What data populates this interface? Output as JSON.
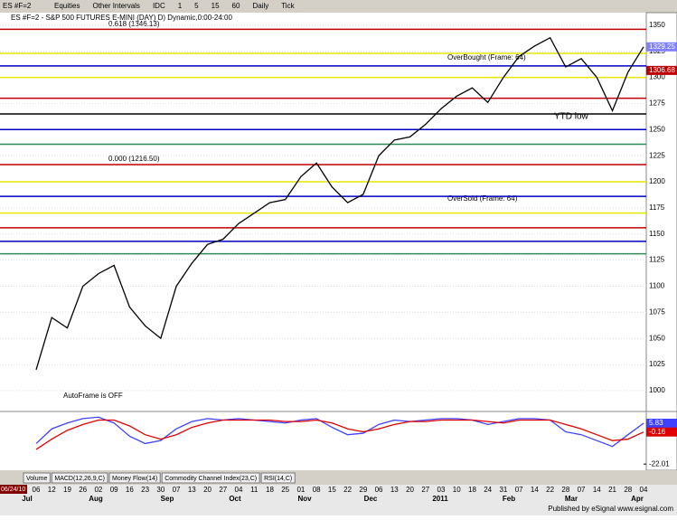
{
  "toolbar": {
    "symbol": "ES #F=2",
    "items": [
      "Equities",
      "Other Intervals",
      "IDC",
      "1",
      "5",
      "15",
      "60",
      "Daily",
      "Tick"
    ]
  },
  "chart_data": [
    {
      "type": "line",
      "title": "ES #F=2 - S&P 500 FUTURES E-MINI (DAY) D) Dynamic,0:00-24:00",
      "categories": [
        "06",
        "12",
        "19",
        "26",
        "02",
        "09",
        "16",
        "23",
        "30",
        "07",
        "13",
        "20",
        "27",
        "04",
        "11",
        "18",
        "25",
        "01",
        "08",
        "15",
        "22",
        "29",
        "06",
        "13",
        "20",
        "27",
        "03",
        "10",
        "18",
        "24",
        "31",
        "07",
        "14",
        "22",
        "28",
        "07",
        "14",
        "21",
        "28",
        "04"
      ],
      "months": [
        "Jul",
        "Aug",
        "Sep",
        "Oct",
        "Nov",
        "Dec",
        "2011",
        "Feb",
        "Mar",
        "Apr"
      ],
      "start_label": "06/24/10",
      "series": [
        {
          "name": "ES #F=2",
          "color": "#000000",
          "values": [
            1020,
            1070,
            1060,
            1100,
            1112,
            1120,
            1080,
            1062,
            1050,
            1100,
            1122,
            1140,
            1145,
            1160,
            1170,
            1180,
            1183,
            1205,
            1218,
            1195,
            1180,
            1188,
            1225,
            1240,
            1243,
            1255,
            1270,
            1282,
            1290,
            1276,
            1300,
            1320,
            1330,
            1338,
            1310,
            1318,
            1300,
            1268,
            1305,
            1329.25
          ]
        }
      ],
      "levels": [
        {
          "value": 1346.13,
          "color": "#c00000"
        },
        {
          "value": 1323,
          "color": "#e6e600"
        },
        {
          "value": 1311,
          "color": "#0000c0"
        },
        {
          "value": 1300,
          "color": "#e6e600"
        },
        {
          "value": 1280,
          "color": "#c00000"
        },
        {
          "value": 1265,
          "color": "#000000"
        },
        {
          "value": 1250,
          "color": "#0000c0"
        },
        {
          "value": 1236,
          "color": "#2e8b57"
        },
        {
          "value": 1216.5,
          "color": "#c00000"
        },
        {
          "value": 1200,
          "color": "#e6e600"
        },
        {
          "value": 1186,
          "color": "#0000c0"
        },
        {
          "value": 1170,
          "color": "#e6e600"
        },
        {
          "value": 1156,
          "color": "#c00000"
        },
        {
          "value": 1143,
          "color": "#0000c0"
        },
        {
          "value": 1131,
          "color": "#2e8b57"
        }
      ],
      "price_labels": [
        {
          "value": 1306.68,
          "color": "#c00000"
        }
      ],
      "annotations": [
        "0.618 (1346.13)",
        "0.000 (1216.50)",
        "OverBought (Frame: 64)",
        "OverSold (Frame: 64)",
        "YTD low",
        "AutoFrame is OFF"
      ],
      "ylim": [
        980,
        1362
      ],
      "yticks": [
        1350,
        1325,
        1300,
        1275,
        1250,
        1225,
        1200,
        1175,
        1150,
        1125,
        1100,
        1075,
        1050,
        1025,
        1000
      ],
      "grid": true
    },
    {
      "type": "line",
      "series": [
        {
          "name": "MACD",
          "color": "#4040ff",
          "values": [
            -8,
            2,
            6,
            9,
            10,
            6,
            -3,
            -8,
            -6,
            2,
            7,
            9,
            8,
            9,
            8,
            7,
            6,
            8,
            9,
            3,
            -2,
            -1,
            5,
            8,
            7,
            8,
            9,
            9,
            8,
            5,
            7,
            9,
            9,
            8,
            0,
            -2,
            -6,
            -10,
            -2,
            5.83
          ]
        },
        {
          "name": "Signal",
          "color": "#e00000",
          "values": [
            -12,
            -5,
            1,
            5,
            8,
            8,
            4,
            -2,
            -5,
            -2,
            3,
            6,
            8,
            8,
            8,
            8,
            7,
            7,
            8,
            6,
            2,
            0,
            2,
            5,
            7,
            7,
            8,
            8,
            8,
            7,
            6,
            8,
            8,
            8,
            5,
            2,
            -2,
            -6,
            -5,
            -0.16
          ]
        }
      ],
      "ylim": [
        -25,
        12
      ],
      "yticks": [
        -22.01
      ]
    }
  ],
  "tabs": [
    "Volume",
    "MACD(12,26,9,C)",
    "Money Flow(14)",
    "Commodity Channel Index(23,C)",
    "RSI(14,C)"
  ],
  "footer": "Published by eSignal www.esignal.com"
}
